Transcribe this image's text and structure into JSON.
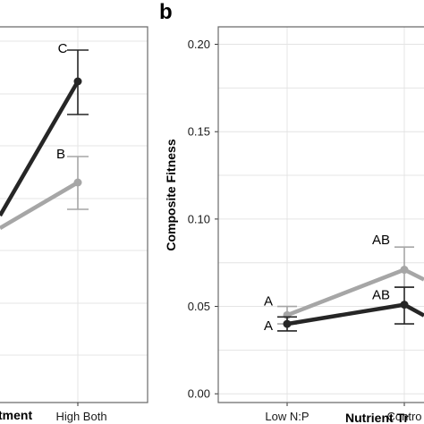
{
  "chart_data": [
    {
      "panel": "",
      "type": "line",
      "xlabel": "tment",
      "categories": [
        "High Both"
      ],
      "series": [
        {
          "color": "#262626",
          "points": [
            {
              "x": "High Both",
              "y": null,
              "sig": "C"
            }
          ]
        },
        {
          "color": "#a6a6a6",
          "points": [
            {
              "x": "High Both",
              "y": null,
              "sig": "B"
            }
          ]
        }
      ],
      "grid": true
    },
    {
      "panel": "b",
      "type": "line",
      "ylabel": "Composite Fitness",
      "xlabel": "Nutrient Tr",
      "categories": [
        "Low N:P",
        "Contro"
      ],
      "yticks": [
        "0.00",
        "0.05",
        "0.10",
        "0.15",
        "0.20"
      ],
      "ylim": [
        -0.005,
        0.21
      ],
      "grid": true,
      "series": [
        {
          "color": "#a6a6a6",
          "points": [
            {
              "x": "Low N:P",
              "y": 0.045,
              "lo": 0.04,
              "hi": 0.05,
              "sig": "A"
            },
            {
              "x": "Contro",
              "y": 0.071,
              "lo": 0.061,
              "hi": 0.084,
              "sig": "AB"
            }
          ]
        },
        {
          "color": "#262626",
          "points": [
            {
              "x": "Low N:P",
              "y": 0.04,
              "lo": 0.036,
              "hi": 0.044,
              "sig": "A"
            },
            {
              "x": "Contro",
              "y": 0.051,
              "lo": 0.04,
              "hi": 0.061,
              "sig": "AB"
            }
          ]
        }
      ]
    }
  ]
}
